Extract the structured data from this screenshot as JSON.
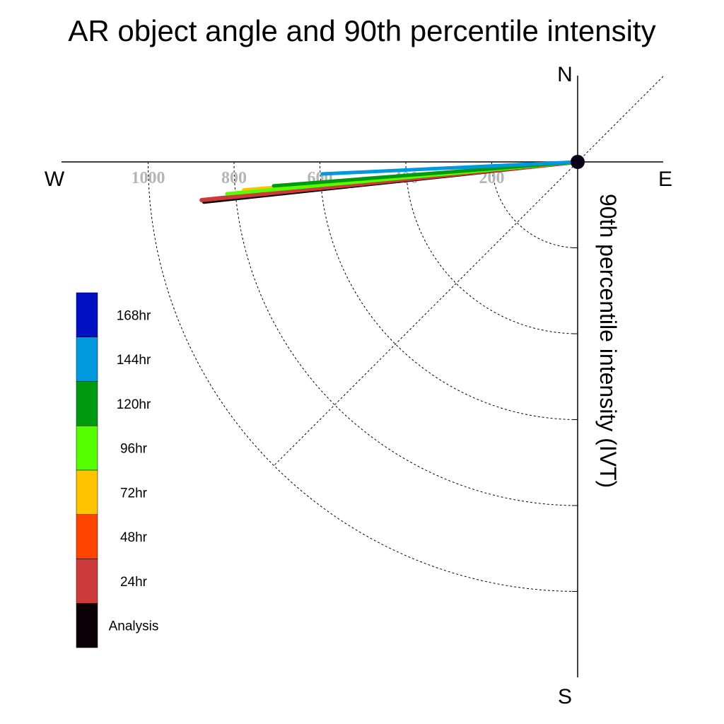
{
  "chart_data": {
    "type": "polar-vector",
    "title": "AR object angle and 90th percentile intensity",
    "ylabel": "90th percentile intensity (IVT)",
    "compass": {
      "north": "N",
      "south": "S",
      "east": "E",
      "west": "W"
    },
    "radial_ticks": [
      "200",
      "400",
      "600",
      "800",
      "1000"
    ],
    "radial_tick_values": [
      200,
      400,
      600,
      800,
      1000
    ],
    "radial_max": 1200,
    "grid": true,
    "legend_position": "left",
    "series": [
      {
        "name": "168hr",
        "color": "#0011c3",
        "angle_deg": 0,
        "intensity": 0,
        "present": false
      },
      {
        "name": "144hr",
        "color": "#0099dd",
        "angle_deg": 177.3,
        "intensity": 595
      },
      {
        "name": "120hr",
        "color": "#009a11",
        "angle_deg": 175.5,
        "intensity": 710
      },
      {
        "name": "96hr",
        "color": "#55ff00",
        "angle_deg": 174.8,
        "intensity": 820
      },
      {
        "name": "72hr",
        "color": "#ffc300",
        "angle_deg": 175.2,
        "intensity": 780
      },
      {
        "name": "48hr",
        "color": "#ff4400",
        "angle_deg": 174.8,
        "intensity": 800
      },
      {
        "name": "24hr",
        "color": "#cc3a3a",
        "angle_deg": 174.2,
        "intensity": 880
      },
      {
        "name": "Analysis",
        "color": "#0a0006",
        "angle_deg": 173.9,
        "intensity": 875
      }
    ]
  }
}
